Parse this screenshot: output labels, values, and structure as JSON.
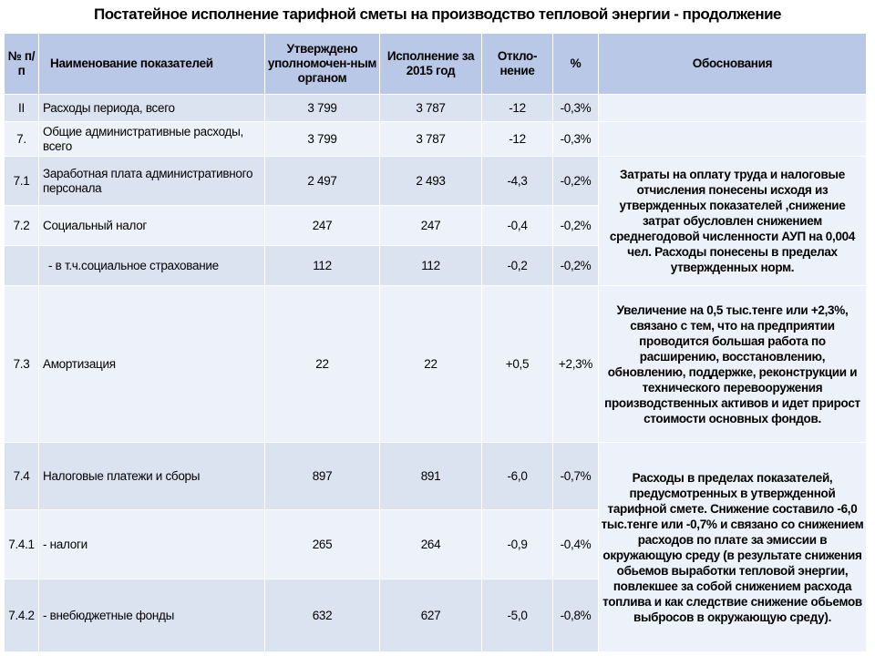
{
  "title": "Постатейное исполнение тарифной сметы на производство тепловой энергии - продолжение",
  "headers": {
    "num": "№ п/п",
    "name": "Наименование показателей",
    "approved": "Утверждено уполномочен-ным органом",
    "actual": "Исполнение за 2015 год",
    "deviation": "Откло-нение",
    "percent": "%",
    "basis": "Обоснования"
  },
  "rows": [
    {
      "num": "II",
      "name": "Расходы периода, всего",
      "approved": "3 799",
      "actual": "3 787",
      "deviation": "-12",
      "percent": "-0,3%"
    },
    {
      "num": "7.",
      "name": "Общие административные расходы, всего",
      "approved": "3 799",
      "actual": "3 787",
      "deviation": "-12",
      "percent": "-0,3%"
    },
    {
      "num": "7.1",
      "name": "Заработная плата административного персонала",
      "approved": "2 497",
      "actual": "2 493",
      "deviation": "-4,3",
      "percent": "-0,2%"
    },
    {
      "num": "7.2",
      "name": "Социальный налог",
      "approved": "247",
      "actual": "247",
      "deviation": "-0,4",
      "percent": "-0,2%"
    },
    {
      "num": "",
      "name": "- в т.ч.социальное страхование",
      "approved": "112",
      "actual": "112",
      "deviation": "-0,2",
      "percent": "-0,2%"
    },
    {
      "num": "7.3",
      "name": "Амортизация",
      "approved": "22",
      "actual": "22",
      "deviation": "+0,5",
      "percent": "+2,3%"
    },
    {
      "num": "7.4",
      "name": "Налоговые платежи и сборы",
      "approved": "897",
      "actual": "891",
      "deviation": "-6,0",
      "percent": "-0,7%"
    },
    {
      "num": "7.4.1",
      "name": "- налоги",
      "approved": "265",
      "actual": "264",
      "deviation": "-0,9",
      "percent": "-0,4%"
    },
    {
      "num": "7.4.2",
      "name": "- внебюджетные фонды",
      "approved": "632",
      "actual": "627",
      "deviation": "-5,0",
      "percent": "-0,8%"
    }
  ],
  "basis": {
    "labor": "Затраты на оплату труда и налоговые отчисления понесены исходя из утвержденных показателей ,снижение затрат обусловлен снижением среднегодовой численности АУП на 0,004 чел. Расходы понесены в пределах утвержденных норм.",
    "depreciation": "Увеличение на 0,5 тыс.тенге или +2,3%, связано с тем, что на предприятии проводится большая работа по расширению, восстановлению, обновлению, поддержке, реконструкции и технического перевооружения производственных активов и идет прирост стоимости основных фондов.",
    "taxes": "Расходы в пределах показателей, предусмотренных в утвержденной тарифной смете. Снижение составило -6,0 тыс.тенге или -0,7% и связано со снижением расходов по плате за эмиссии в окружающую среду (в результате снижения обьемов выработки тепловой энергии, повлекшее за собой снижением расхода топлива и как следствие снижение обьемов выбросов в окружающую среду)."
  }
}
